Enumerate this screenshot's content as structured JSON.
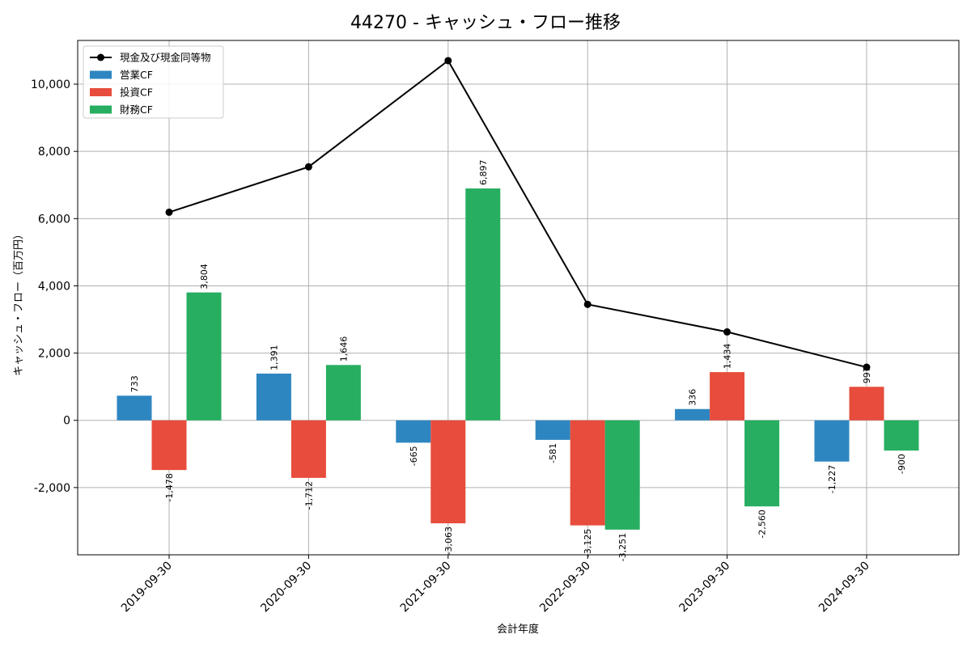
{
  "chart_data": {
    "type": "bar",
    "title": "44270 - キャッシュ・フロー推移",
    "xlabel": "会計年度",
    "ylabel": "キャッシュ・フロー（百万円）",
    "categories": [
      "2019-09-30",
      "2020-09-30",
      "2021-09-30",
      "2022-09-30",
      "2023-09-30",
      "2024-09-30"
    ],
    "ylim": [
      -4000,
      11300
    ],
    "yticks": [
      -2000,
      0,
      2000,
      4000,
      6000,
      8000,
      10000
    ],
    "ytick_labels": [
      "-2,000",
      "0",
      "2,000",
      "4,000",
      "6,000",
      "8,000",
      "10,000"
    ],
    "grid": true,
    "legend_position": "top-left",
    "series": [
      {
        "name": "営業CF",
        "kind": "bar",
        "color": "#2e86c1",
        "values": [
          733,
          1391,
          -665,
          -581,
          336,
          -1227
        ],
        "labels": [
          "733",
          "1,391",
          "-665",
          "-581",
          "336",
          "-1,227"
        ]
      },
      {
        "name": "投資CF",
        "kind": "bar",
        "color": "#e74c3c",
        "values": [
          -1478,
          -1712,
          -3063,
          -3125,
          1434,
          997
        ],
        "labels": [
          "-1,478",
          "-1,712",
          "-3,063",
          "-3,125",
          "1,434",
          "997"
        ]
      },
      {
        "name": "財務CF",
        "kind": "bar",
        "color": "#27ae60",
        "values": [
          3804,
          1646,
          6897,
          -3251,
          -2560,
          -900
        ],
        "labels": [
          "3,804",
          "1,646",
          "6,897",
          "-3,251",
          "-2,560",
          "-900"
        ]
      },
      {
        "name": "現金及び現金同等物",
        "kind": "line",
        "color": "#000000",
        "values": [
          6190,
          7540,
          10700,
          3450,
          2630,
          1580
        ]
      }
    ]
  }
}
